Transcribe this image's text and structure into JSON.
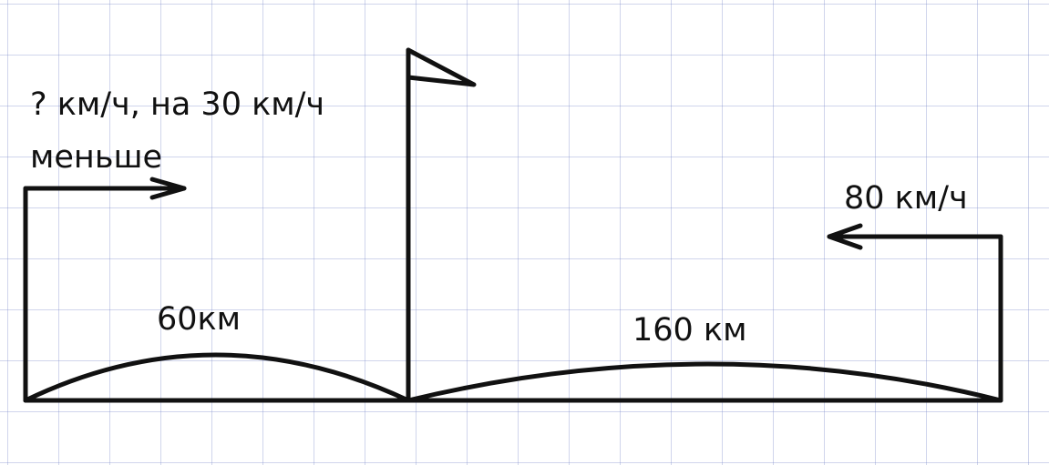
{
  "left_segment": {
    "distance": "60км",
    "speed_line_1": "? км/ч, на 30 км/ч",
    "speed_line_2": "меньше"
  },
  "right_segment": {
    "distance": "160 км",
    "speed": "80 км/ч"
  },
  "colors": {
    "ink": "#111111",
    "grid": "#8a93c8",
    "paper": "#ffffff"
  }
}
